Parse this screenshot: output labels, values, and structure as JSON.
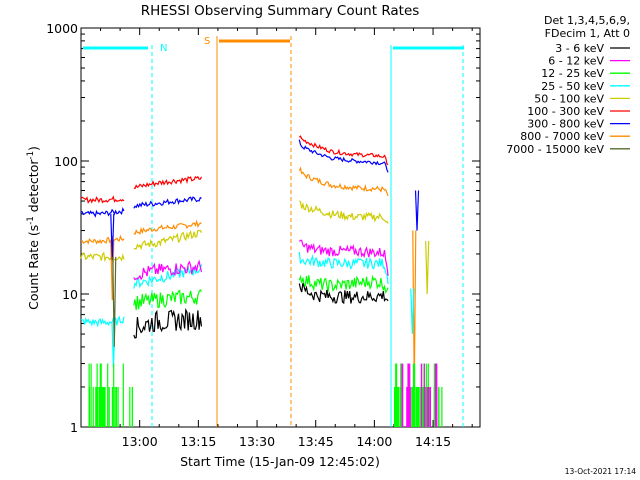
{
  "chart_data": {
    "type": "line",
    "title": "RHESSI Observing Summary Count Rates",
    "xlabel": "Start Time (15-Jan-09 12:45:02)",
    "ylabel": "Count Rate (s",
    "ylabel_sup": "-1",
    "ylabel_mid": " detector",
    "ylabel_sup2": "-1",
    "ylabel_end": ")",
    "x_unit": "minutes after 12:45:02",
    "xlim": [
      0,
      102
    ],
    "ylim": [
      1,
      1000
    ],
    "y_scale": "log",
    "x_ticks": [
      {
        "x": 15,
        "label": "13:00"
      },
      {
        "x": 30,
        "label": "13:15"
      },
      {
        "x": 45,
        "label": "13:30"
      },
      {
        "x": 60,
        "label": "13:45"
      },
      {
        "x": 75,
        "label": "14:00"
      },
      {
        "x": 90,
        "label": "14:15"
      }
    ],
    "y_ticks": [
      {
        "y": 1,
        "label": "1"
      },
      {
        "y": 10,
        "label": "10"
      },
      {
        "y": 100,
        "label": "100"
      },
      {
        "y": 1000,
        "label": "1000"
      }
    ],
    "legend": {
      "placement": "right-outside",
      "header1": "Det 1,3,4,5,6,9,",
      "header2": "FDecim 1, Att 0"
    },
    "series": [
      {
        "name": "3 - 6 keV",
        "color": "#000000",
        "segments": [
          {
            "x": [
              13.5,
              19,
              24,
              30.8
            ],
            "y": [
              5.5,
              6.2,
              6.3,
              6.5
            ],
            "noise": 0.08
          },
          {
            "x": [
              55.8,
              56.5,
              60,
              64,
              70,
              75,
              77.5,
              78.5
            ],
            "y": [
              12,
              11,
              9.8,
              9.6,
              9.5,
              9.6,
              9.8,
              9.0
            ],
            "noise": 0.05
          }
        ]
      },
      {
        "name": "6 - 12 keV",
        "color": "#ff00ff",
        "segments": [
          {
            "x": [
              13.5,
              19,
              24,
              30.8
            ],
            "y": [
              14,
              15,
              15.5,
              16
            ],
            "noise": 0.05
          },
          {
            "x": [
              55.8,
              56.5,
              60,
              64,
              70,
              75,
              77.5,
              78.5
            ],
            "y": [
              25,
              23,
              21.5,
              21,
              21,
              20.5,
              20.5,
              15
            ],
            "noise": 0.04
          }
        ]
      },
      {
        "name": "12 - 25 keV",
        "color": "#00ff00",
        "segments": [
          {
            "x": [
              13.5,
              19,
              24,
              30.8
            ],
            "y": [
              8.6,
              9.0,
              9.3,
              9.6
            ],
            "noise": 0.06
          },
          {
            "x": [
              55.8,
              56.5,
              60,
              64,
              70,
              75,
              77.5,
              78.5
            ],
            "y": [
              14,
              13,
              12,
              11.5,
              12,
              12.5,
              12,
              10
            ],
            "noise": 0.05
          }
        ]
      },
      {
        "name": "25 - 50 keV",
        "color": "#00ffff",
        "segments": [
          {
            "x": [
              0,
              5,
              9.5,
              10.5,
              11
            ],
            "y": [
              6.2,
              6.1,
              6.2,
              6.5,
              6.5
            ],
            "noise": 0.03
          },
          {
            "x": [
              13.5,
              19,
              24,
              30.8
            ],
            "y": [
              12,
              13,
              14,
              15.5
            ],
            "noise": 0.04
          },
          {
            "x": [
              55.8,
              56.5,
              60,
              64,
              70,
              75,
              77.5,
              78.5
            ],
            "y": [
              19,
              18,
              17.5,
              17,
              17,
              17,
              17,
              13
            ],
            "noise": 0.04
          }
        ]
      },
      {
        "name": "50 - 100 keV",
        "color": "#cccc00",
        "segments": [
          {
            "x": [
              0,
              5,
              10.5,
              11
            ],
            "y": [
              19,
              19,
              19,
              19
            ],
            "noise": 0.03
          },
          {
            "x": [
              13.5,
              19,
              24,
              30.8
            ],
            "y": [
              23,
              24,
              26,
              29
            ],
            "noise": 0.03
          },
          {
            "x": [
              55.8,
              56.5,
              60,
              64,
              70,
              75,
              77.5,
              78.5
            ],
            "y": [
              50,
              46,
              43,
              40,
              38,
              38,
              38,
              33
            ],
            "noise": 0.03
          }
        ]
      },
      {
        "name": "100 - 300 keV",
        "color": "#ff0000",
        "segments": [
          {
            "x": [
              0,
              5,
              10.5,
              11
            ],
            "y": [
              51,
              51,
              52,
              52
            ],
            "noise": 0.02
          },
          {
            "x": [
              13.5,
              19,
              24,
              30.8
            ],
            "y": [
              63,
              68,
              71,
              74
            ],
            "noise": 0.02
          },
          {
            "x": [
              55.8,
              56.5,
              60,
              64,
              70,
              75,
              77.5,
              78.5
            ],
            "y": [
              155,
              145,
              130,
              118,
              112,
              110,
              108,
              95
            ],
            "noise": 0.015
          }
        ]
      },
      {
        "name": "300 - 800 keV",
        "color": "#0000ff",
        "segments": [
          {
            "x": [
              0,
              5,
              10.5,
              11
            ],
            "y": [
              40,
              40,
              42,
              42
            ],
            "noise": 0.02
          },
          {
            "x": [
              13.5,
              19,
              24,
              30.8
            ],
            "y": [
              46,
              48,
              50,
              52
            ],
            "noise": 0.02
          },
          {
            "x": [
              55.8,
              56.5,
              60,
              64,
              70,
              75,
              77.5,
              78.5
            ],
            "y": [
              140,
              128,
              115,
              105,
              100,
              98,
              96,
              85
            ],
            "noise": 0.015
          }
        ]
      },
      {
        "name": "800 - 7000 keV",
        "color": "#ff8c00",
        "segments": [
          {
            "x": [
              0,
              5,
              10.5,
              11
            ],
            "y": [
              25,
              25,
              26,
              26
            ],
            "noise": 0.02
          },
          {
            "x": [
              13.5,
              19,
              24,
              30.8
            ],
            "y": [
              29,
              31,
              32,
              34
            ],
            "noise": 0.02
          },
          {
            "x": [
              55.8,
              56.5,
              60,
              64,
              70,
              75,
              77.5,
              78.5
            ],
            "y": [
              88,
              80,
              72,
              66,
              63,
              62,
              61,
              55
            ],
            "noise": 0.02
          }
        ]
      },
      {
        "name": "7000 - 15000 keV",
        "color": "#556b2f",
        "segments": []
      }
    ],
    "annotations": {
      "night_label": "N",
      "saa_label": "S",
      "date_stamp": "13-Oct-2021 17:14"
    }
  }
}
